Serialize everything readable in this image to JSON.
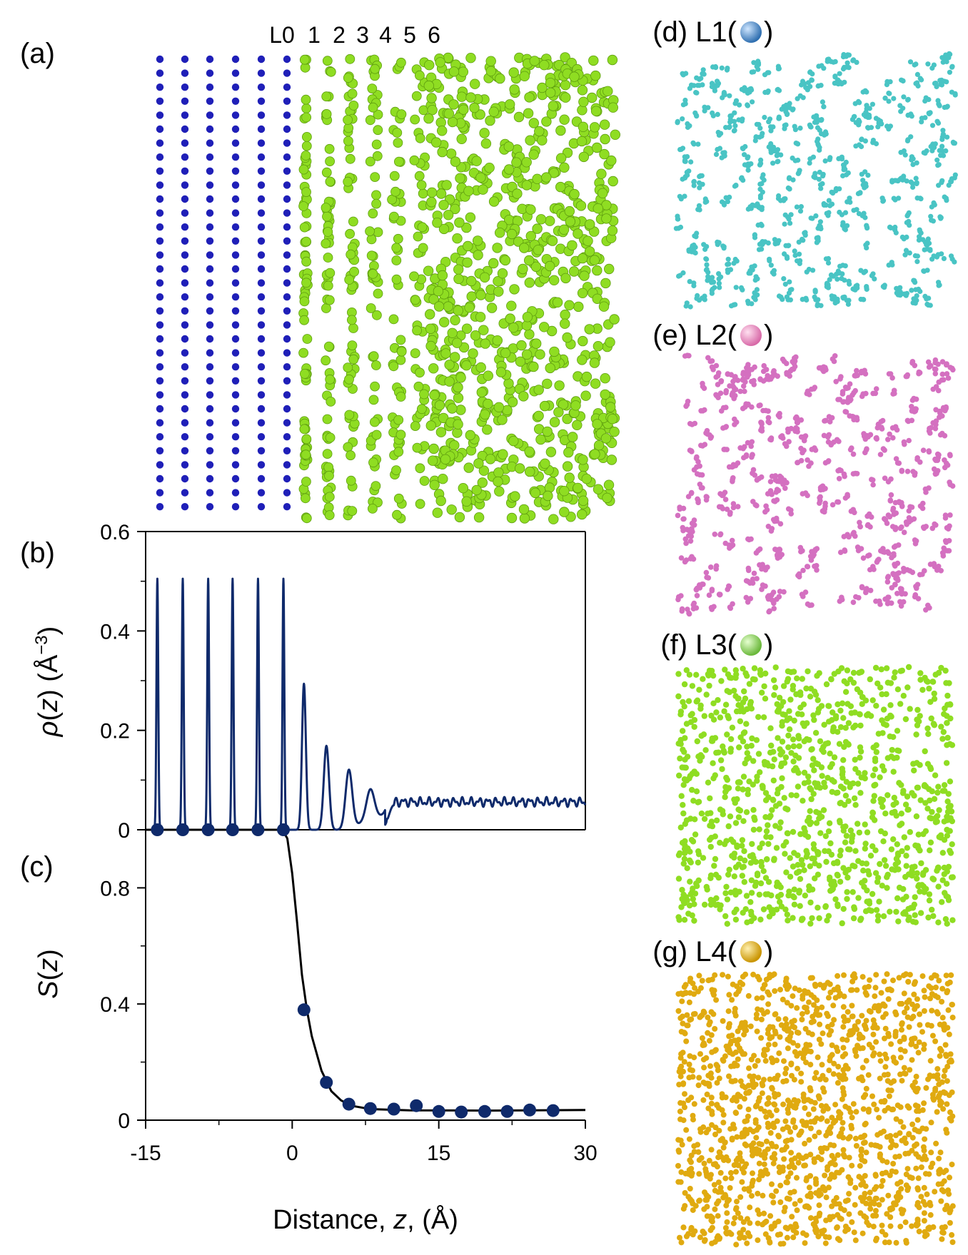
{
  "panels": {
    "a": {
      "label": "(a)",
      "layer_labels": [
        "L0",
        "1",
        "2",
        "3",
        "4",
        "5",
        "6"
      ],
      "colors": {
        "substrate": "#1f1fb8",
        "liquid": "#8fdd22"
      }
    },
    "d": {
      "title": "(d) L1(",
      "close": ")",
      "sphere_color": "#2f6fb0",
      "particle_color": "#49c4c4"
    },
    "e": {
      "title": "(e) L2(",
      "close": ")",
      "sphere_color": "#d86aa8",
      "particle_color": "#d470c0"
    },
    "f": {
      "title": "(f) L3(",
      "close": ")",
      "sphere_color": "#6ab83a",
      "particle_color": "#8fdd22"
    },
    "g": {
      "title": "(g) L4(",
      "close": ")",
      "sphere_color": "#c99400",
      "particle_color": "#e0aa10"
    }
  },
  "chart_data": [
    {
      "panel": "(b)",
      "type": "line",
      "xlim": [
        -15,
        30
      ],
      "ylim": [
        0,
        0.6
      ],
      "yticks": [
        "0",
        "0.2",
        "0.4",
        "0.6"
      ],
      "ylabel_parts": {
        "sym": "ρ",
        "open": "(",
        "var": "z",
        "close": ") (Å",
        "exp": "−3",
        "end": ")"
      },
      "color": "#0f2a6b",
      "substrate_peaks": [
        {
          "z": -13.8,
          "height": 0.505
        },
        {
          "z": -11.2,
          "height": 0.505
        },
        {
          "z": -8.6,
          "height": 0.505
        },
        {
          "z": -6.1,
          "height": 0.505
        },
        {
          "z": -3.5,
          "height": 0.505
        },
        {
          "z": -0.9,
          "height": 0.505
        }
      ],
      "liquid_peaks": [
        {
          "z": 1.2,
          "height": 0.305
        },
        {
          "z": 3.5,
          "height": 0.18
        },
        {
          "z": 5.8,
          "height": 0.128
        },
        {
          "z": 8.0,
          "height": 0.093
        },
        {
          "z": 10.4,
          "height": 0.08
        }
      ],
      "bulk_density": 0.056
    },
    {
      "panel": "(c)",
      "type": "scatter",
      "xlim": [
        -15,
        30
      ],
      "ylim": [
        0,
        1.0
      ],
      "xticks": [
        "-15",
        "0",
        "15",
        "30"
      ],
      "yticks": [
        "0",
        "0.4",
        "0.8"
      ],
      "xlabel_parts": {
        "pre": "Distance, ",
        "var": "z",
        "post": ", (Å)"
      },
      "ylabel_parts": {
        "sym": "S",
        "open": "(",
        "var": "z",
        "close": ")"
      },
      "marker_color": "#0f2a6b",
      "points": [
        {
          "x": -13.8,
          "y": 1.0
        },
        {
          "x": -11.2,
          "y": 1.0
        },
        {
          "x": -8.6,
          "y": 1.0
        },
        {
          "x": -6.1,
          "y": 1.0
        },
        {
          "x": -3.5,
          "y": 1.0
        },
        {
          "x": -0.9,
          "y": 1.0
        },
        {
          "x": 1.2,
          "y": 0.38
        },
        {
          "x": 3.5,
          "y": 0.13
        },
        {
          "x": 5.8,
          "y": 0.055
        },
        {
          "x": 8.0,
          "y": 0.04
        },
        {
          "x": 10.4,
          "y": 0.038
        },
        {
          "x": 12.7,
          "y": 0.05
        },
        {
          "x": 15.0,
          "y": 0.03
        },
        {
          "x": 17.3,
          "y": 0.028
        },
        {
          "x": 19.7,
          "y": 0.03
        },
        {
          "x": 22.0,
          "y": 0.03
        },
        {
          "x": 24.3,
          "y": 0.035
        },
        {
          "x": 26.7,
          "y": 0.033
        }
      ],
      "fit_curve": [
        {
          "x": -15,
          "y": 1.0
        },
        {
          "x": -1.0,
          "y": 1.0
        },
        {
          "x": -0.5,
          "y": 0.97
        },
        {
          "x": 0.0,
          "y": 0.85
        },
        {
          "x": 0.5,
          "y": 0.68
        },
        {
          "x": 1.0,
          "y": 0.5
        },
        {
          "x": 1.5,
          "y": 0.38
        },
        {
          "x": 2.0,
          "y": 0.29
        },
        {
          "x": 3.0,
          "y": 0.17
        },
        {
          "x": 4.0,
          "y": 0.1
        },
        {
          "x": 5.0,
          "y": 0.068
        },
        {
          "x": 6.0,
          "y": 0.05
        },
        {
          "x": 8.0,
          "y": 0.038
        },
        {
          "x": 12.0,
          "y": 0.034
        },
        {
          "x": 20.0,
          "y": 0.033
        },
        {
          "x": 30.0,
          "y": 0.035
        }
      ]
    }
  ]
}
